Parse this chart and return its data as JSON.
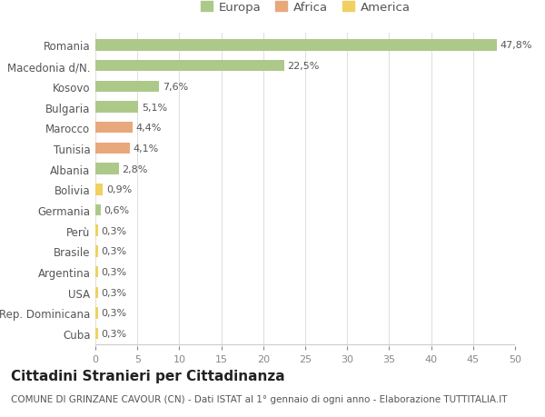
{
  "countries": [
    "Romania",
    "Macedonia d/N.",
    "Kosovo",
    "Bulgaria",
    "Marocco",
    "Tunisia",
    "Albania",
    "Bolivia",
    "Germania",
    "Perù",
    "Brasile",
    "Argentina",
    "USA",
    "Rep. Dominicana",
    "Cuba"
  ],
  "values": [
    47.8,
    22.5,
    7.6,
    5.1,
    4.4,
    4.1,
    2.8,
    0.9,
    0.6,
    0.3,
    0.3,
    0.3,
    0.3,
    0.3,
    0.3
  ],
  "labels": [
    "47,8%",
    "22,5%",
    "7,6%",
    "5,1%",
    "4,4%",
    "4,1%",
    "2,8%",
    "0,9%",
    "0,6%",
    "0,3%",
    "0,3%",
    "0,3%",
    "0,3%",
    "0,3%",
    "0,3%"
  ],
  "continents": [
    "Europa",
    "Europa",
    "Europa",
    "Europa",
    "Africa",
    "Africa",
    "Europa",
    "America",
    "Europa",
    "America",
    "America",
    "America",
    "America",
    "America",
    "America"
  ],
  "colors": {
    "Europa": "#adc98a",
    "Africa": "#e8a87c",
    "America": "#f0d060"
  },
  "title": "Cittadini Stranieri per Cittadinanza",
  "subtitle": "COMUNE DI GRINZANE CAVOUR (CN) - Dati ISTAT al 1° gennaio di ogni anno - Elaborazione TUTTITALIA.IT",
  "xlim": [
    0,
    50
  ],
  "xticks": [
    0,
    5,
    10,
    15,
    20,
    25,
    30,
    35,
    40,
    45,
    50
  ],
  "bg_color": "#ffffff",
  "grid_color": "#e0e0e0",
  "bar_height": 0.55,
  "label_fontsize": 8,
  "title_fontsize": 11,
  "subtitle_fontsize": 7.5,
  "tick_fontsize": 8,
  "country_fontsize": 8.5
}
